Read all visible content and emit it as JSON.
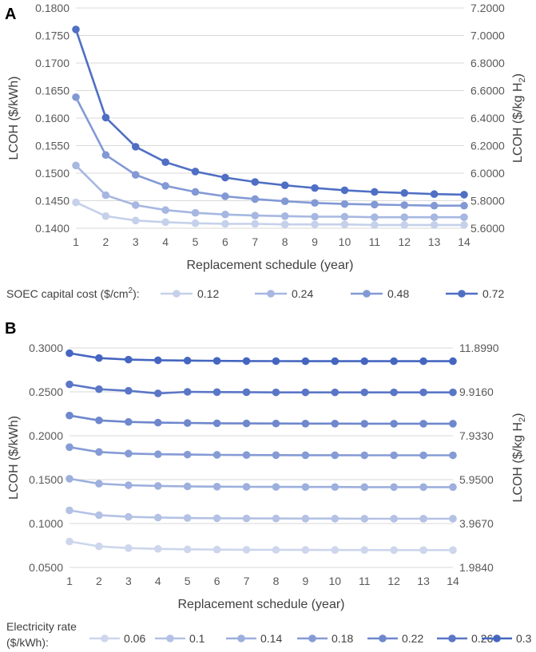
{
  "chart_data": [
    {
      "panel": "A",
      "type": "line",
      "x": [
        1,
        2,
        3,
        4,
        5,
        6,
        7,
        8,
        9,
        10,
        11,
        12,
        13,
        14
      ],
      "xlabel": "Replacement schedule (year)",
      "ylabel": "LCOH ($/kWh)",
      "y2label": "LCOH ($/kg H",
      "y2label_sub": "2",
      "y2label_end": ")",
      "ylim": [
        0.14,
        0.18
      ],
      "y2lim": [
        5.6,
        7.2
      ],
      "yticks": [
        "0.1400",
        "0.1450",
        "0.1500",
        "0.1550",
        "0.1600",
        "0.1650",
        "0.1700",
        "0.1750",
        "0.1800"
      ],
      "y2ticks": [
        "5.6000",
        "5.8000",
        "6.0000",
        "6.2000",
        "6.4000",
        "6.6000",
        "6.8000",
        "7.0000",
        "7.2000"
      ],
      "legend_title": "SOEC capital cost ($/cm",
      "legend_title_sup": "2",
      "legend_title_end": "):",
      "series": [
        {
          "name": "0.12",
          "color": "#c5d1ea",
          "values": [
            0.1447,
            0.1422,
            0.1414,
            0.1411,
            0.1409,
            0.1408,
            0.1408,
            0.1407,
            0.1407,
            0.1407,
            0.1406,
            0.1406,
            0.1406,
            0.1406
          ]
        },
        {
          "name": "0.24",
          "color": "#a6b7e1",
          "values": [
            0.1514,
            0.146,
            0.1442,
            0.1433,
            0.1428,
            0.1425,
            0.1423,
            0.1422,
            0.1421,
            0.1421,
            0.142,
            0.142,
            0.142,
            0.142
          ]
        },
        {
          "name": "0.48",
          "color": "#8299d5",
          "values": [
            0.1638,
            0.1533,
            0.1497,
            0.1477,
            0.1466,
            0.1458,
            0.1453,
            0.1449,
            0.1446,
            0.1444,
            0.1443,
            0.1442,
            0.1441,
            0.1441
          ]
        },
        {
          "name": "0.72",
          "color": "#4f6fc4",
          "values": [
            0.1761,
            0.1601,
            0.1548,
            0.152,
            0.1503,
            0.1492,
            0.1484,
            0.1478,
            0.1473,
            0.1469,
            0.1466,
            0.1464,
            0.1462,
            0.1461
          ]
        }
      ]
    },
    {
      "panel": "B",
      "type": "line",
      "x": [
        1,
        2,
        3,
        4,
        5,
        6,
        7,
        8,
        9,
        10,
        11,
        12,
        13,
        14
      ],
      "xlabel": "Replacement schedule (year)",
      "ylabel": "LCOH ($/kWh)",
      "y2label": "LCOH ($/kg H",
      "y2label_sub": "2",
      "y2label_end": ")",
      "ylim": [
        0.05,
        0.3
      ],
      "y2lim": [
        1.984,
        11.899
      ],
      "yticks": [
        "0.0500",
        "0.1000",
        "0.1500",
        "0.2000",
        "0.2500",
        "0.3000"
      ],
      "y2ticks": [
        "1.9840",
        "3.9670",
        "5.9500",
        "7.9330",
        "9.9160",
        "11.8990"
      ],
      "legend_title_line1": "Electricity rate",
      "legend_title_line2": "($/kWh):",
      "series": [
        {
          "name": "0.06",
          "color": "#cdd6ec",
          "values": [
            0.0795,
            0.074,
            0.072,
            0.0711,
            0.0706,
            0.0703,
            0.0701,
            0.07,
            0.0699,
            0.0698,
            0.0698,
            0.0697,
            0.0697,
            0.0697
          ]
        },
        {
          "name": "0.1",
          "color": "#b3c1e4",
          "values": [
            0.115,
            0.1095,
            0.1076,
            0.1068,
            0.1063,
            0.106,
            0.1058,
            0.1057,
            0.1056,
            0.1056,
            0.1055,
            0.1055,
            0.1055,
            0.1055
          ]
        },
        {
          "name": "0.14",
          "color": "#9cafdd",
          "values": [
            0.151,
            0.1454,
            0.1436,
            0.1428,
            0.1423,
            0.142,
            0.1418,
            0.1417,
            0.1416,
            0.1416,
            0.1415,
            0.1415,
            0.1415,
            0.1415
          ]
        },
        {
          "name": "0.18",
          "color": "#859bd5",
          "values": [
            0.187,
            0.1815,
            0.1797,
            0.1789,
            0.1785,
            0.1782,
            0.178,
            0.1779,
            0.1778,
            0.1778,
            0.1777,
            0.1777,
            0.1777,
            0.1777
          ]
        },
        {
          "name": "0.22",
          "color": "#6e87cd",
          "values": [
            0.223,
            0.2175,
            0.2157,
            0.2149,
            0.2145,
            0.2142,
            0.214,
            0.2139,
            0.2138,
            0.2138,
            0.2137,
            0.2137,
            0.2137,
            0.2137
          ]
        },
        {
          "name": "0.26",
          "color": "#5a76c6",
          "values": [
            0.2585,
            0.253,
            0.2512,
            0.2483,
            0.25,
            0.2497,
            0.2496,
            0.2494,
            0.2494,
            0.2494,
            0.2494,
            0.2494,
            0.2494,
            0.2494
          ]
        },
        {
          "name": "0.3",
          "color": "#4566c0",
          "values": [
            0.294,
            0.2885,
            0.2867,
            0.286,
            0.2856,
            0.2853,
            0.2851,
            0.285,
            0.2849,
            0.2849,
            0.2849,
            0.2849,
            0.2849,
            0.2849
          ]
        }
      ]
    }
  ]
}
